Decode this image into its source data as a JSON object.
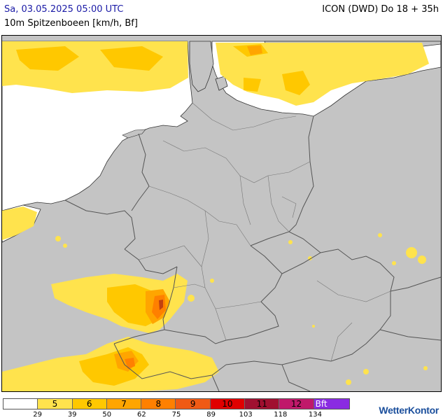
{
  "header": {
    "date": "Sa, 03.05.2025 05:00 UTC",
    "subtitle": "10m Spitzenboeen [km/h, Bf]",
    "model": "ICON (DWD) Do 18 + 35h"
  },
  "legend": {
    "cells": [
      {
        "label": "",
        "color": "#ffffff"
      },
      {
        "label": "5",
        "color": "#ffe34d"
      },
      {
        "label": "6",
        "color": "#ffc800"
      },
      {
        "label": "7",
        "color": "#ffa500"
      },
      {
        "label": "8",
        "color": "#ff8000"
      },
      {
        "label": "9",
        "color": "#f05a14"
      },
      {
        "label": "10",
        "color": "#e00000"
      },
      {
        "label": "11",
        "color": "#a01030"
      },
      {
        "label": "12",
        "color": "#c0186a"
      },
      {
        "label": "Bft",
        "color": "#8a2be2"
      }
    ],
    "ticks": [
      "29",
      "39",
      "50",
      "62",
      "75",
      "89",
      "103",
      "118",
      "134"
    ]
  },
  "colors": {
    "land": "#c4c4c4",
    "sea": "#ffffff",
    "border": "#555555",
    "coast": "#333333",
    "bf5": "#ffe34d",
    "bf6": "#ffc800",
    "bf7": "#ffa500",
    "bf8": "#ff8000",
    "bf9": "#e05010"
  },
  "brand": {
    "name": "WetterKontor"
  }
}
